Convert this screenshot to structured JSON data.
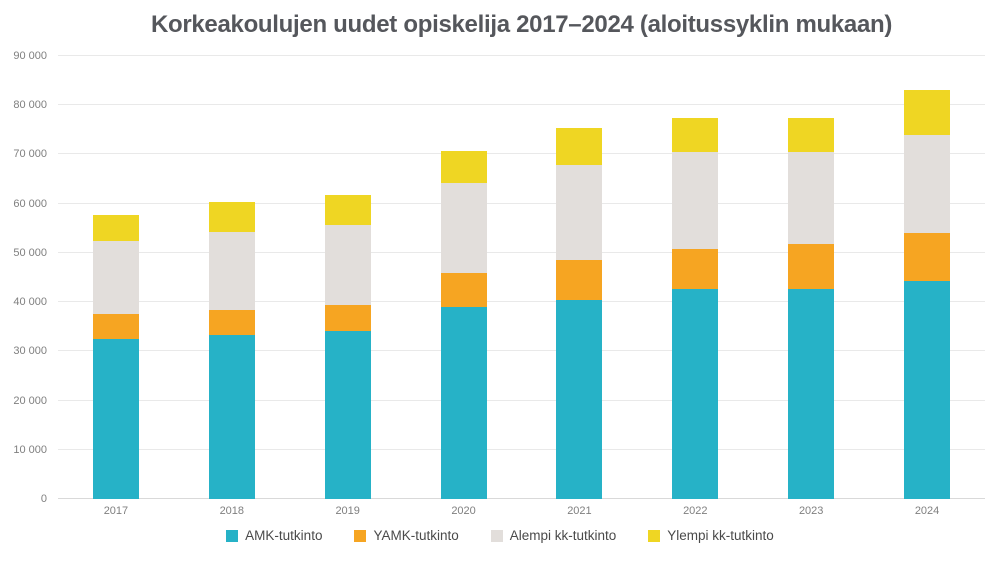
{
  "title": "Korkeakoulujen uudet opiskelija 2017–2024 (aloitussyklin mukaan)",
  "chart_data": {
    "type": "bar",
    "stacked": true,
    "title": "Korkeakoulujen uudet opiskelija 2017–2024 (aloitussyklin mukaan)",
    "xlabel": "",
    "ylabel": "",
    "categories": [
      "2017",
      "2018",
      "2019",
      "2020",
      "2021",
      "2022",
      "2023",
      "2024"
    ],
    "series": [
      {
        "name": "AMK-tutkinto",
        "color": "#26b2c7",
        "values": [
          32500,
          33300,
          34200,
          39000,
          40500,
          42600,
          42700,
          44200
        ]
      },
      {
        "name": "YAMK-tutkinto",
        "color": "#f6a522",
        "values": [
          5000,
          5200,
          5300,
          6900,
          8000,
          8100,
          9100,
          9800
        ]
      },
      {
        "name": "Alempi kk-tutkinto",
        "color": "#e2dedb",
        "values": [
          15000,
          15800,
          16200,
          18300,
          19300,
          19800,
          18700,
          20000
        ]
      },
      {
        "name": "Ylempi kk-tutkinto",
        "color": "#efd623",
        "values": [
          5300,
          6000,
          6000,
          6500,
          7600,
          6900,
          7000,
          9200
        ]
      }
    ],
    "ylim": [
      0,
      90000
    ],
    "ytick_step": 10000,
    "ytick_labels": [
      "0",
      "10 000",
      "20 000",
      "30 000",
      "40 000",
      "50 000",
      "60 000",
      "70 000",
      "80 000",
      "90 000"
    ],
    "grid": "horizontal",
    "legend_position": "bottom"
  },
  "colors": {
    "background": "#ffffff",
    "title_text": "#55575c",
    "axis_text": "#7f7f7f",
    "legend_text": "#4a4a4a",
    "gridline": "#e9e9e9",
    "baseline": "#d9d9d9"
  }
}
